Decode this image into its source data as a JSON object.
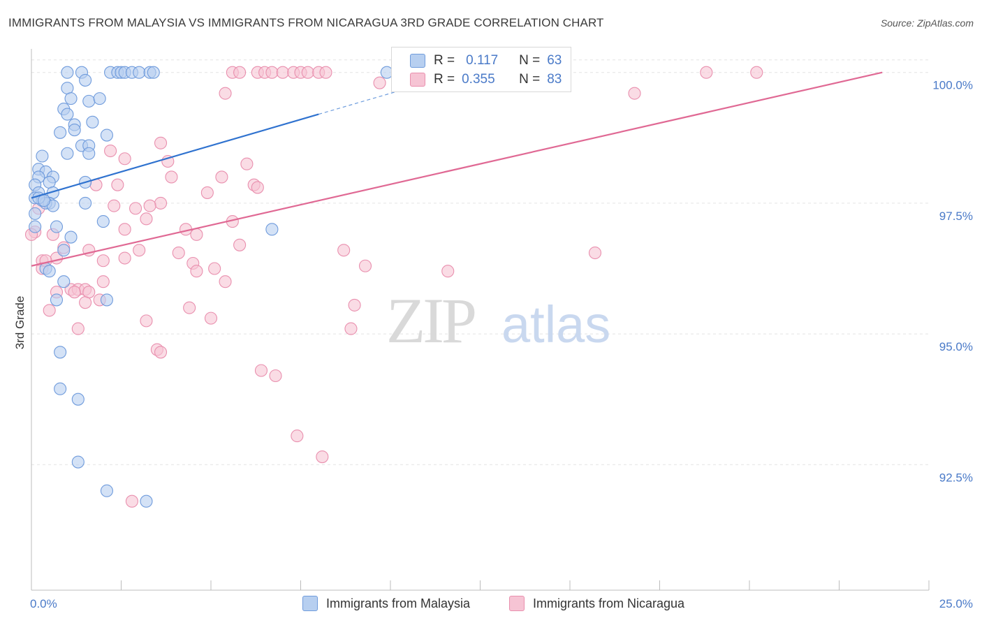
{
  "title": "IMMIGRANTS FROM MALAYSIA VS IMMIGRANTS FROM NICARAGUA 3RD GRADE CORRELATION CHART",
  "source": "Source: ZipAtlas.com",
  "watermark": {
    "zip": "ZIP",
    "atlas": "atlas"
  },
  "colors": {
    "malaysia_fill": "#b7cff0",
    "malaysia_stroke": "#6f9bdc",
    "malaysia_line": "#2f72cf",
    "nicaragua_fill": "#f6c4d4",
    "nicaragua_stroke": "#e98fae",
    "nicaragua_line": "#e06994",
    "tick_label": "#4a7ac8",
    "grid": "#e3e3e3"
  },
  "legend": {
    "r_label": "R =",
    "n_label": "N =",
    "rows": [
      {
        "r": "0.117",
        "n": "63"
      },
      {
        "r": "0.355",
        "n": "83"
      }
    ]
  },
  "chart_data": {
    "type": "scatter",
    "title": "IMMIGRANTS FROM MALAYSIA VS IMMIGRANTS FROM NICARAGUA 3RD GRADE CORRELATION CHART",
    "xlabel": "",
    "ylabel": "3rd Grade",
    "xlim": [
      0,
      25
    ],
    "ylim": [
      90.1,
      100.45
    ],
    "x_tick_labels": [
      {
        "value": 0,
        "label": "0.0%"
      },
      {
        "value": 25,
        "label": "25.0%"
      }
    ],
    "y_ticks": [
      {
        "value": 100.0,
        "label": "100.0%"
      },
      {
        "value": 97.5,
        "label": "97.5%"
      },
      {
        "value": 95.0,
        "label": "95.0%"
      },
      {
        "value": 92.5,
        "label": "92.5%"
      }
    ],
    "grid": true,
    "legend_position": "top-center",
    "series": [
      {
        "name": "Immigrants from Malaysia",
        "r": 0.117,
        "n": 63,
        "trend": {
          "x": [
            0.0,
            8.0
          ],
          "y": [
            97.6,
            99.2
          ],
          "dashed_to": [
            10.5,
            99.7
          ]
        },
        "points": [
          [
            1.0,
            100.0
          ],
          [
            1.4,
            100.0
          ],
          [
            2.2,
            100.0
          ],
          [
            2.4,
            100.0
          ],
          [
            2.5,
            100.0
          ],
          [
            2.6,
            100.0
          ],
          [
            2.8,
            100.0
          ],
          [
            3.0,
            100.0
          ],
          [
            3.3,
            100.0
          ],
          [
            3.4,
            100.0
          ],
          [
            1.5,
            99.85
          ],
          [
            1.0,
            99.7
          ],
          [
            1.1,
            99.5
          ],
          [
            1.6,
            99.45
          ],
          [
            1.9,
            99.5
          ],
          [
            0.9,
            99.3
          ],
          [
            1.0,
            99.2
          ],
          [
            1.2,
            99.0
          ],
          [
            1.7,
            99.05
          ],
          [
            0.8,
            98.85
          ],
          [
            1.2,
            98.9
          ],
          [
            2.1,
            98.8
          ],
          [
            1.4,
            98.6
          ],
          [
            1.6,
            98.6
          ],
          [
            1.0,
            98.45
          ],
          [
            1.6,
            98.45
          ],
          [
            0.3,
            98.4
          ],
          [
            0.2,
            98.15
          ],
          [
            0.4,
            98.1
          ],
          [
            0.2,
            98.0
          ],
          [
            0.6,
            98.0
          ],
          [
            0.5,
            97.9
          ],
          [
            1.5,
            97.9
          ],
          [
            0.1,
            97.85
          ],
          [
            0.2,
            97.7
          ],
          [
            0.6,
            97.7
          ],
          [
            0.1,
            97.6
          ],
          [
            0.3,
            97.55
          ],
          [
            0.5,
            97.5
          ],
          [
            0.4,
            97.5
          ],
          [
            0.6,
            97.45
          ],
          [
            1.5,
            97.5
          ],
          [
            2.0,
            97.15
          ],
          [
            0.1,
            97.05
          ],
          [
            0.7,
            97.05
          ],
          [
            6.7,
            97.0
          ],
          [
            1.1,
            96.85
          ],
          [
            0.9,
            96.6
          ],
          [
            0.4,
            96.25
          ],
          [
            0.5,
            96.2
          ],
          [
            0.9,
            96.0
          ],
          [
            0.7,
            95.65
          ],
          [
            2.1,
            95.65
          ],
          [
            0.8,
            94.65
          ],
          [
            0.8,
            93.95
          ],
          [
            1.3,
            93.75
          ],
          [
            1.3,
            92.55
          ],
          [
            2.1,
            92.0
          ],
          [
            3.2,
            91.8
          ],
          [
            0.1,
            97.3
          ],
          [
            9.9,
            100.0
          ],
          [
            0.2,
            97.6
          ],
          [
            0.35,
            97.55
          ]
        ]
      },
      {
        "name": "Immigrants from Nicaragua",
        "r": 0.355,
        "n": 83,
        "trend": {
          "x": [
            0.0,
            23.7
          ],
          "y": [
            96.3,
            100.0
          ]
        },
        "points": [
          [
            5.6,
            100.0
          ],
          [
            5.8,
            100.0
          ],
          [
            6.3,
            100.0
          ],
          [
            6.5,
            100.0
          ],
          [
            6.7,
            100.0
          ],
          [
            7.0,
            100.0
          ],
          [
            7.3,
            100.0
          ],
          [
            7.5,
            100.0
          ],
          [
            7.7,
            100.0
          ],
          [
            8.0,
            100.0
          ],
          [
            8.2,
            100.0
          ],
          [
            18.8,
            100.0
          ],
          [
            20.2,
            100.0
          ],
          [
            9.7,
            99.8
          ],
          [
            5.4,
            99.6
          ],
          [
            16.8,
            99.6
          ],
          [
            3.6,
            98.65
          ],
          [
            2.2,
            98.5
          ],
          [
            2.6,
            98.35
          ],
          [
            3.8,
            98.3
          ],
          [
            6.0,
            98.25
          ],
          [
            3.9,
            98.0
          ],
          [
            5.3,
            98.0
          ],
          [
            1.8,
            97.85
          ],
          [
            2.4,
            97.85
          ],
          [
            6.2,
            97.85
          ],
          [
            6.3,
            97.8
          ],
          [
            4.9,
            97.7
          ],
          [
            2.3,
            97.45
          ],
          [
            2.9,
            97.4
          ],
          [
            3.6,
            97.5
          ],
          [
            3.3,
            97.45
          ],
          [
            3.2,
            97.2
          ],
          [
            5.6,
            97.15
          ],
          [
            2.6,
            97.0
          ],
          [
            4.3,
            97.0
          ],
          [
            4.6,
            96.9
          ],
          [
            5.8,
            96.7
          ],
          [
            0.1,
            96.95
          ],
          [
            0.6,
            96.9
          ],
          [
            0.9,
            96.65
          ],
          [
            1.6,
            96.6
          ],
          [
            3.0,
            96.6
          ],
          [
            4.1,
            96.55
          ],
          [
            8.7,
            96.6
          ],
          [
            15.7,
            96.55
          ],
          [
            0.3,
            96.4
          ],
          [
            0.7,
            96.45
          ],
          [
            2.0,
            96.4
          ],
          [
            2.6,
            96.45
          ],
          [
            4.5,
            96.35
          ],
          [
            4.6,
            96.2
          ],
          [
            5.1,
            96.25
          ],
          [
            9.3,
            96.3
          ],
          [
            11.6,
            96.2
          ],
          [
            0.3,
            96.25
          ],
          [
            0.7,
            95.8
          ],
          [
            1.1,
            95.85
          ],
          [
            1.3,
            95.85
          ],
          [
            1.5,
            95.85
          ],
          [
            1.6,
            95.8
          ],
          [
            2.0,
            96.0
          ],
          [
            0.5,
            95.45
          ],
          [
            1.2,
            95.8
          ],
          [
            1.9,
            95.65
          ],
          [
            4.4,
            95.5
          ],
          [
            5.0,
            95.3
          ],
          [
            5.4,
            96.0
          ],
          [
            9.0,
            95.55
          ],
          [
            3.2,
            95.25
          ],
          [
            1.3,
            95.1
          ],
          [
            8.9,
            95.1
          ],
          [
            3.5,
            94.7
          ],
          [
            3.6,
            94.65
          ],
          [
            6.4,
            94.3
          ],
          [
            6.8,
            94.2
          ],
          [
            7.4,
            93.05
          ],
          [
            8.1,
            92.65
          ],
          [
            2.8,
            91.8
          ],
          [
            0.0,
            96.9
          ],
          [
            0.2,
            97.4
          ],
          [
            0.4,
            96.4
          ],
          [
            1.5,
            95.6
          ]
        ]
      }
    ]
  }
}
